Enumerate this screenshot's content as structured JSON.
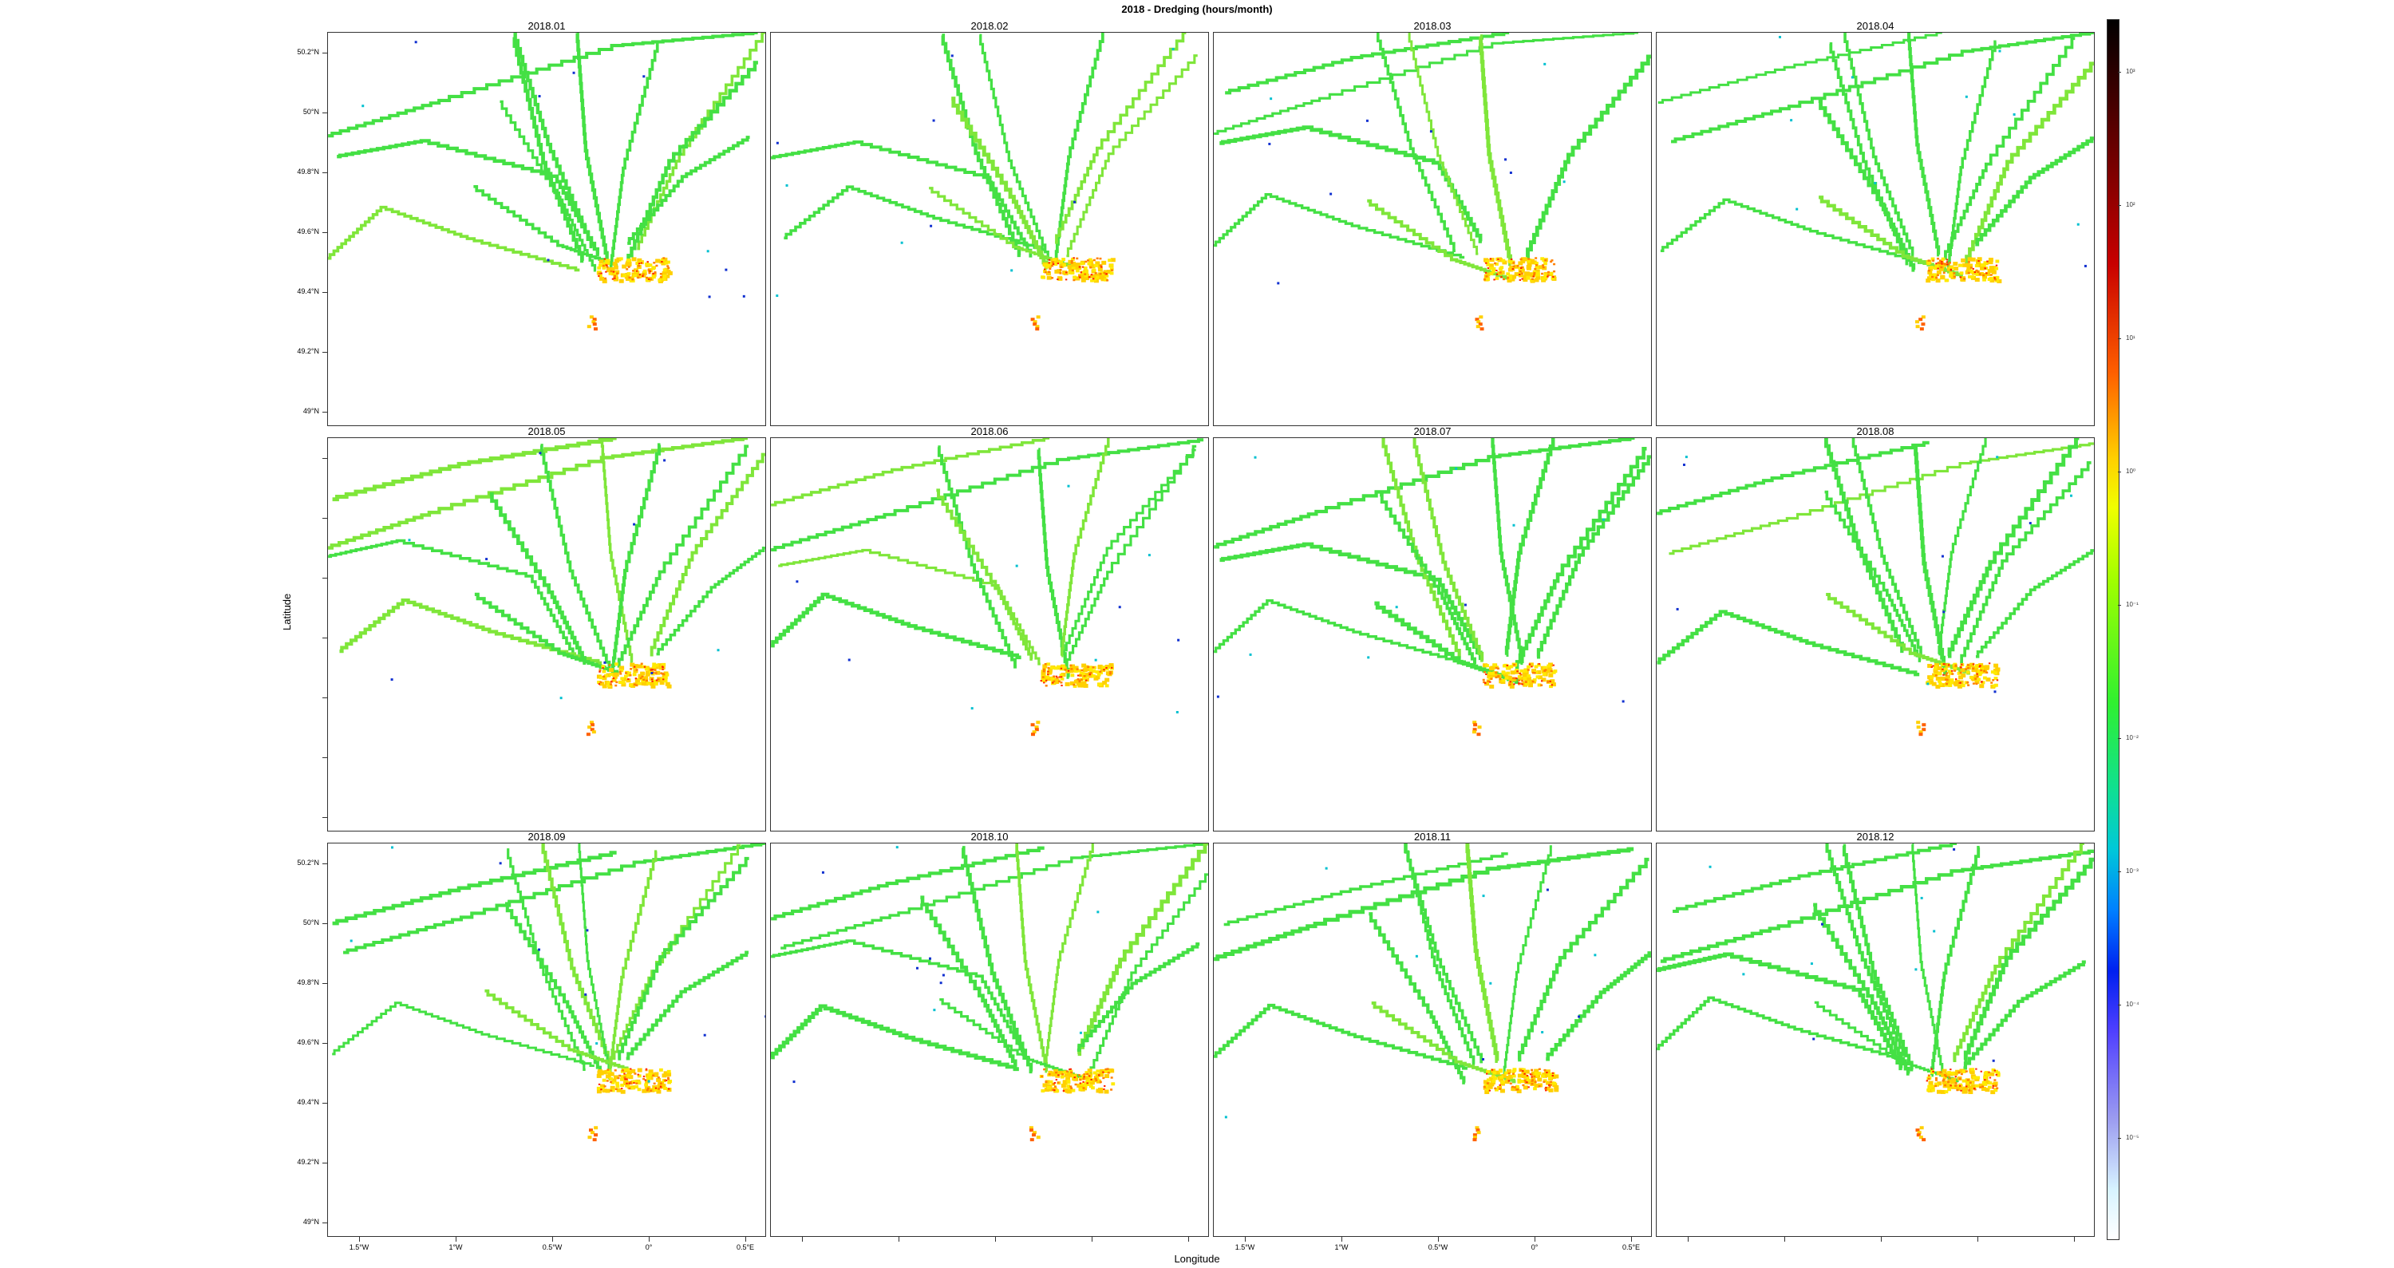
{
  "title": "2018 - Dredging (hours/month)",
  "xlabel": "Longitude",
  "ylabel": "Latitude",
  "panels": [
    "2018.01",
    "2018.02",
    "2018.03",
    "2018.04",
    "2018.05",
    "2018.06",
    "2018.07",
    "2018.08",
    "2018.09",
    "2018.10",
    "2018.11",
    "2018.12"
  ],
  "y_ticks": [
    "50.2°N",
    "50°N",
    "49.8°N",
    "49.6°N",
    "49.4°N",
    "49.2°N",
    "49°N"
  ],
  "x_ticks": [
    "1.5°W",
    "1°W",
    "0.5°W",
    "0°",
    "0.5°E"
  ],
  "colorbar_ticks": [
    "10³",
    "10²",
    "10¹",
    "10⁰",
    "10⁻¹",
    "10⁻²",
    "10⁻³",
    "10⁻⁴",
    "10⁻⁵"
  ],
  "colors": {
    "main_track": "#44e044",
    "hot": "#ff2000",
    "warm": "#ffd000",
    "cool": "#00c0d0"
  }
}
